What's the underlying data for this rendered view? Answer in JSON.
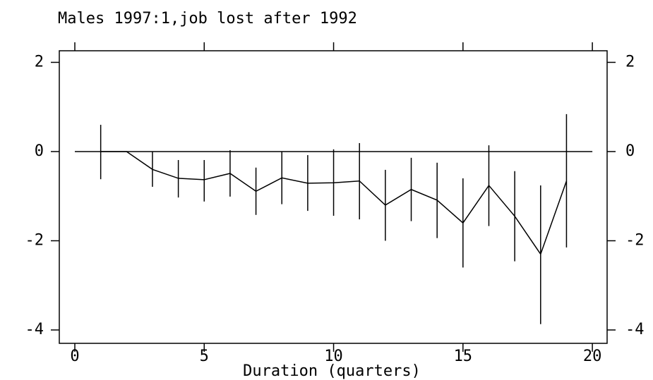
{
  "chart_data": {
    "type": "line",
    "title": "Males 1997:1,job lost after 1992",
    "xlabel": "Duration (quarters)",
    "x": [
      1,
      2,
      3,
      4,
      5,
      6,
      7,
      8,
      9,
      10,
      11,
      12,
      13,
      14,
      15,
      16,
      17,
      18,
      19
    ],
    "values": [
      0,
      0,
      -0.4,
      -0.6,
      -0.63,
      -0.49,
      -0.89,
      -0.59,
      -0.71,
      -0.7,
      -0.66,
      -1.2,
      -0.85,
      -1.09,
      -1.6,
      -0.76,
      -1.45,
      -2.3,
      -0.66
    ],
    "lower": [
      -0.62,
      null,
      -0.79,
      -1.03,
      -1.12,
      -1.01,
      -1.42,
      -1.18,
      -1.33,
      -1.44,
      -1.52,
      -2.0,
      -1.56,
      -1.94,
      -2.6,
      -1.67,
      -2.46,
      -3.87,
      -2.15
    ],
    "upper": [
      0.6,
      null,
      0,
      -0.19,
      -0.19,
      0.03,
      -0.36,
      0,
      -0.08,
      0.05,
      0.19,
      -0.41,
      -0.14,
      -0.25,
      -0.6,
      0.14,
      -0.44,
      -0.76,
      0.84
    ],
    "hline": 0,
    "color": "#000000",
    "xlim": [
      -0.6,
      20.57
    ],
    "ylim": [
      -4.3,
      2.26
    ],
    "xticks": [
      0,
      5,
      10,
      15,
      20
    ],
    "yticks": [
      -4,
      -2,
      0,
      2
    ]
  }
}
